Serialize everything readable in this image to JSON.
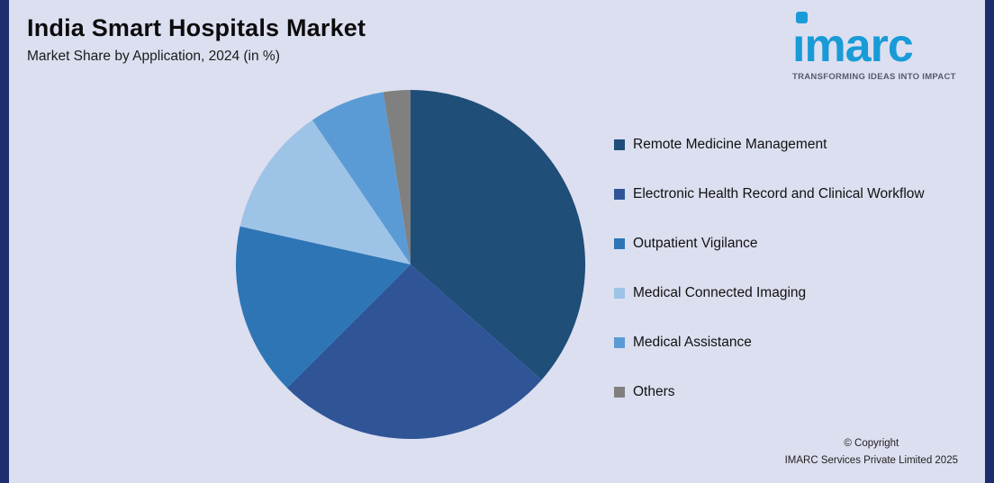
{
  "header": {
    "title": "India Smart Hospitals Market",
    "subtitle": "Market Share by Application, 2024 (in %)"
  },
  "logo": {
    "text": "imarc",
    "tagline": "TRANSFORMING IDEAS INTO IMPACT",
    "brand_color": "#189bd7",
    "tagline_color": "#565a6c"
  },
  "chart_data": {
    "type": "pie",
    "title": "India Smart Hospitals Market",
    "subtitle": "Market Share by Application, 2024 (in %)",
    "units": "%",
    "categories": [
      "Remote Medicine Management",
      "Electronic Health Record and Clinical Workflow",
      "Outpatient Vigilance",
      "Medical Connected Imaging",
      "Medical Assistance",
      "Others"
    ],
    "values": [
      36.5,
      26,
      16,
      12,
      7,
      2.5
    ],
    "colors": [
      "#1f4e79",
      "#2f5597",
      "#2e75b6",
      "#9dc3e6",
      "#5b9bd5",
      "#808080"
    ],
    "start_angle_deg": -90,
    "direction": "clockwise",
    "legend_position": "right",
    "data_labels": false,
    "grid": false
  },
  "footer": {
    "copyright_line1": "© Copyright",
    "copyright_line2": "IMARC Services Private Limited 2025"
  },
  "theme": {
    "background": "#dcdff0",
    "side_bar_color": "#1d2e6e",
    "text_color": "#111111"
  }
}
